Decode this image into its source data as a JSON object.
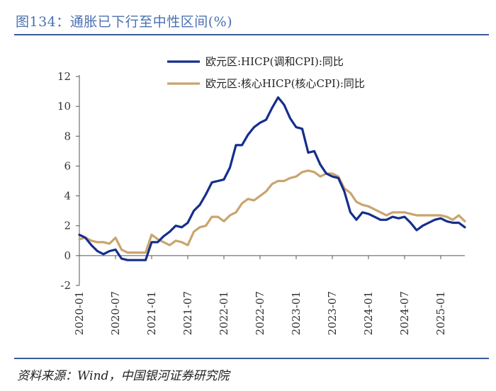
{
  "figure_title": "图134：通胀已下行至中性区间(%)",
  "source": "资料来源：Wind，中国银河证券研究院",
  "colors": {
    "series1": "#142e8c",
    "series2": "#c9a46d",
    "title": "#4a71b1",
    "rule": "#3a5d9b"
  },
  "chart_data": {
    "type": "line",
    "title": "通胀已下行至中性区间(%)",
    "xlabel": "",
    "ylabel": "",
    "ylim": [
      -2,
      12
    ],
    "yticks": [
      -2,
      0,
      2,
      4,
      6,
      8,
      10,
      12
    ],
    "xticks": [
      "2020-01",
      "2020-07",
      "2021-01",
      "2021-07",
      "2022-01",
      "2022-07",
      "2023-01",
      "2023-07",
      "2024-01",
      "2024-07",
      "2025-01"
    ],
    "x": [
      "2020-01",
      "2020-02",
      "2020-03",
      "2020-04",
      "2020-05",
      "2020-06",
      "2020-07",
      "2020-08",
      "2020-09",
      "2020-10",
      "2020-11",
      "2020-12",
      "2021-01",
      "2021-02",
      "2021-03",
      "2021-04",
      "2021-05",
      "2021-06",
      "2021-07",
      "2021-08",
      "2021-09",
      "2021-10",
      "2021-11",
      "2021-12",
      "2022-01",
      "2022-02",
      "2022-03",
      "2022-04",
      "2022-05",
      "2022-06",
      "2022-07",
      "2022-08",
      "2022-09",
      "2022-10",
      "2022-11",
      "2022-12",
      "2023-01",
      "2023-02",
      "2023-03",
      "2023-04",
      "2023-05",
      "2023-06",
      "2023-07",
      "2023-08",
      "2023-09",
      "2023-10",
      "2023-11",
      "2023-12",
      "2024-01",
      "2024-02",
      "2024-03",
      "2024-04",
      "2024-05",
      "2024-06",
      "2024-07",
      "2024-08",
      "2024-09",
      "2024-10",
      "2024-11",
      "2024-12",
      "2025-01",
      "2025-02",
      "2025-03",
      "2025-04",
      "2025-05"
    ],
    "series": [
      {
        "name": "欧元区:HICP(调和CPI):同比",
        "values": [
          1.4,
          1.2,
          0.7,
          0.3,
          0.1,
          0.3,
          0.4,
          -0.2,
          -0.3,
          -0.3,
          -0.3,
          -0.3,
          0.9,
          0.9,
          1.3,
          1.6,
          2.0,
          1.9,
          2.2,
          3.0,
          3.4,
          4.1,
          4.9,
          5.0,
          5.1,
          5.9,
          7.4,
          7.4,
          8.1,
          8.6,
          8.9,
          9.1,
          9.9,
          10.6,
          10.1,
          9.2,
          8.6,
          8.5,
          6.9,
          7.0,
          6.1,
          5.5,
          5.3,
          5.2,
          4.3,
          2.9,
          2.4,
          2.9,
          2.8,
          2.6,
          2.4,
          2.4,
          2.6,
          2.5,
          2.6,
          2.2,
          1.7,
          2.0,
          2.2,
          2.4,
          2.5,
          2.3,
          2.2,
          2.2,
          1.9
        ]
      },
      {
        "name": "欧元区:核心HICP(核心CPI):同比",
        "values": [
          1.1,
          1.2,
          1.0,
          0.9,
          0.9,
          0.8,
          1.2,
          0.4,
          0.2,
          0.2,
          0.2,
          0.2,
          1.4,
          1.1,
          0.9,
          0.7,
          1.0,
          0.9,
          0.7,
          1.6,
          1.9,
          2.0,
          2.6,
          2.6,
          2.3,
          2.7,
          2.9,
          3.5,
          3.8,
          3.7,
          4.0,
          4.3,
          4.8,
          5.0,
          5.0,
          5.2,
          5.3,
          5.6,
          5.7,
          5.6,
          5.3,
          5.5,
          5.5,
          5.3,
          4.5,
          4.2,
          3.6,
          3.4,
          3.3,
          3.1,
          2.9,
          2.7,
          2.9,
          2.9,
          2.9,
          2.8,
          2.7,
          2.7,
          2.7,
          2.7,
          2.7,
          2.6,
          2.4,
          2.7,
          2.3
        ]
      }
    ],
    "legend_position": "top-center"
  }
}
